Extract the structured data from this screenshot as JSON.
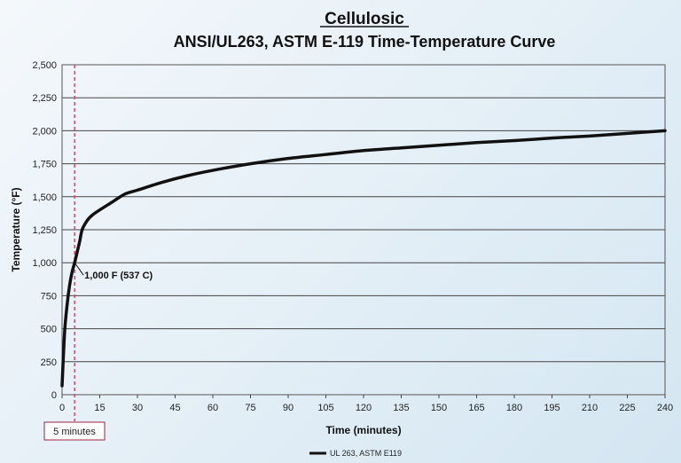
{
  "chart_data": {
    "type": "line",
    "title": "Cellulosic",
    "subtitle": "ANSI/UL263, ASTM E-119 Time-Temperature Curve",
    "xlabel": "Time (minutes)",
    "ylabel": "Temperature (°F)",
    "xlim": [
      0,
      240
    ],
    "ylim": [
      0,
      2500
    ],
    "xticks": [
      0,
      15,
      30,
      45,
      60,
      75,
      90,
      105,
      120,
      135,
      150,
      165,
      180,
      195,
      210,
      225,
      240
    ],
    "yticks": [
      0,
      250,
      500,
      750,
      1000,
      1250,
      1500,
      1750,
      2000,
      2250,
      2500
    ],
    "ytick_labels": [
      "0",
      "250",
      "500",
      "750",
      "1,000",
      "1,250",
      "1,500",
      "1,750",
      "2,000",
      "2,250",
      "2,500"
    ],
    "grid": "horizontal",
    "legend_position": "bottom-center",
    "series": [
      {
        "name": "UL 263, ASTM E119",
        "color": "#111111",
        "x": [
          0,
          1,
          2,
          3,
          4,
          5,
          6,
          7,
          8,
          10,
          12,
          15,
          20,
          25,
          30,
          40,
          50,
          60,
          75,
          90,
          105,
          120,
          135,
          150,
          165,
          180,
          195,
          210,
          225,
          240
        ],
        "y": [
          68,
          470,
          680,
          830,
          930,
          1000,
          1080,
          1160,
          1250,
          1320,
          1360,
          1400,
          1460,
          1520,
          1550,
          1610,
          1660,
          1700,
          1750,
          1790,
          1820,
          1850,
          1870,
          1890,
          1910,
          1925,
          1945,
          1960,
          1980,
          2000
        ]
      }
    ],
    "marker_line": {
      "x": 5,
      "color": "#d04a6a",
      "style": "dashed"
    },
    "annotation": {
      "text": "1,000 F (537 C)",
      "x": 5,
      "y": 1000
    },
    "x_marker_label": "5 minutes"
  }
}
